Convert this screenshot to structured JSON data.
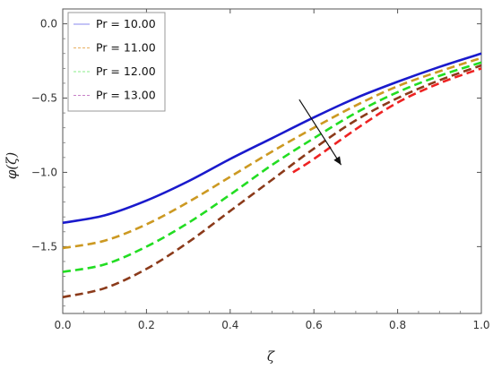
{
  "chart_data": {
    "type": "line",
    "xlabel": "ζ",
    "ylabel": "φ(ζ)",
    "xlim": [
      0,
      1
    ],
    "ylim": [
      -1.95,
      0.1
    ],
    "xticks": [
      "0.0",
      "0.2",
      "0.4",
      "0.6",
      "0.8",
      "1.0"
    ],
    "yticks": [
      "0.0",
      "-0.5",
      "-1.0",
      "-1.5"
    ],
    "grid": false,
    "legend_position": "top-left",
    "series": [
      {
        "name": "Pr = 10.00",
        "color": "#1a1acc",
        "legend_color": "#8a8aee",
        "dash": "solid",
        "x": [
          0,
          0.1,
          0.2,
          0.3,
          0.4,
          0.5,
          0.6,
          0.7,
          0.8,
          0.9,
          1.0
        ],
        "y": [
          -1.34,
          -1.29,
          -1.19,
          -1.06,
          -0.91,
          -0.77,
          -0.63,
          -0.5,
          -0.39,
          -0.29,
          -0.2
        ]
      },
      {
        "name": "Pr = 11.00",
        "color": "#cc9922",
        "legend_color": "#e8b060",
        "dash": "dashed",
        "x": [
          0,
          0.1,
          0.2,
          0.3,
          0.4,
          0.5,
          0.6,
          0.7,
          0.8,
          0.9,
          1.0
        ],
        "y": [
          -1.51,
          -1.46,
          -1.35,
          -1.2,
          -1.03,
          -0.86,
          -0.7,
          -0.55,
          -0.42,
          -0.32,
          -0.23
        ]
      },
      {
        "name": "Pr = 12.00",
        "color": "#22dd22",
        "legend_color": "#88ee88",
        "dash": "dashed",
        "x": [
          0,
          0.1,
          0.2,
          0.3,
          0.4,
          0.5,
          0.6,
          0.7,
          0.8,
          0.9,
          1.0
        ],
        "y": [
          -1.67,
          -1.62,
          -1.5,
          -1.34,
          -1.15,
          -0.95,
          -0.77,
          -0.6,
          -0.46,
          -0.35,
          -0.26
        ]
      },
      {
        "name": "Pr = 13.00",
        "color": "#8b3a1a",
        "legend_color": "#c880c8",
        "dash": "dashed",
        "x": [
          0,
          0.1,
          0.2,
          0.3,
          0.4,
          0.5,
          0.6,
          0.7,
          0.8,
          0.9,
          1.0
        ],
        "y": [
          -1.84,
          -1.78,
          -1.65,
          -1.47,
          -1.26,
          -1.05,
          -0.84,
          -0.65,
          -0.5,
          -0.38,
          -0.28
        ]
      },
      {
        "name": "",
        "color": "#ee2222",
        "dash": "dashed",
        "x": [
          0.55,
          0.6,
          0.7,
          0.8,
          0.9,
          1.0
        ],
        "y": [
          -1.0,
          -0.91,
          -0.71,
          -0.53,
          -0.4,
          -0.3
        ]
      }
    ],
    "arrow": {
      "from": [
        0.565,
        -0.51
      ],
      "to": [
        0.665,
        -0.95
      ]
    }
  }
}
